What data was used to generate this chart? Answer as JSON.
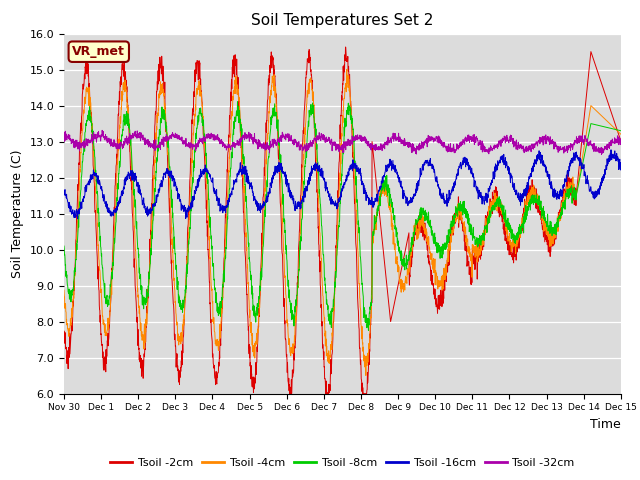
{
  "title": "Soil Temperatures Set 2",
  "xlabel": "Time",
  "ylabel": "Soil Temperature (C)",
  "ylim": [
    6.0,
    16.0
  ],
  "yticks": [
    6.0,
    7.0,
    8.0,
    9.0,
    10.0,
    11.0,
    12.0,
    13.0,
    14.0,
    15.0,
    16.0
  ],
  "background_color": "#dcdcdc",
  "plot_bg_color": "#dcdcdc",
  "colors": {
    "Tsoil -2cm": "#dd0000",
    "Tsoil -4cm": "#ff8800",
    "Tsoil -8cm": "#00cc00",
    "Tsoil -16cm": "#0000cc",
    "Tsoil -32cm": "#aa00aa"
  },
  "xtick_labels": [
    "Nov 30",
    "Dec 1",
    "Dec 2",
    "Dec 3",
    "Dec 4",
    "Dec 5",
    "Dec 6",
    "Dec 7",
    "Dec 8",
    "Dec 9",
    "Dec 10",
    "Dec 11",
    "Dec 12",
    "Dec 13",
    "Dec 14",
    "Dec 15"
  ],
  "annotation_text": "VR_met",
  "annotation_color": "#880000",
  "annotation_bg": "#ffffcc"
}
